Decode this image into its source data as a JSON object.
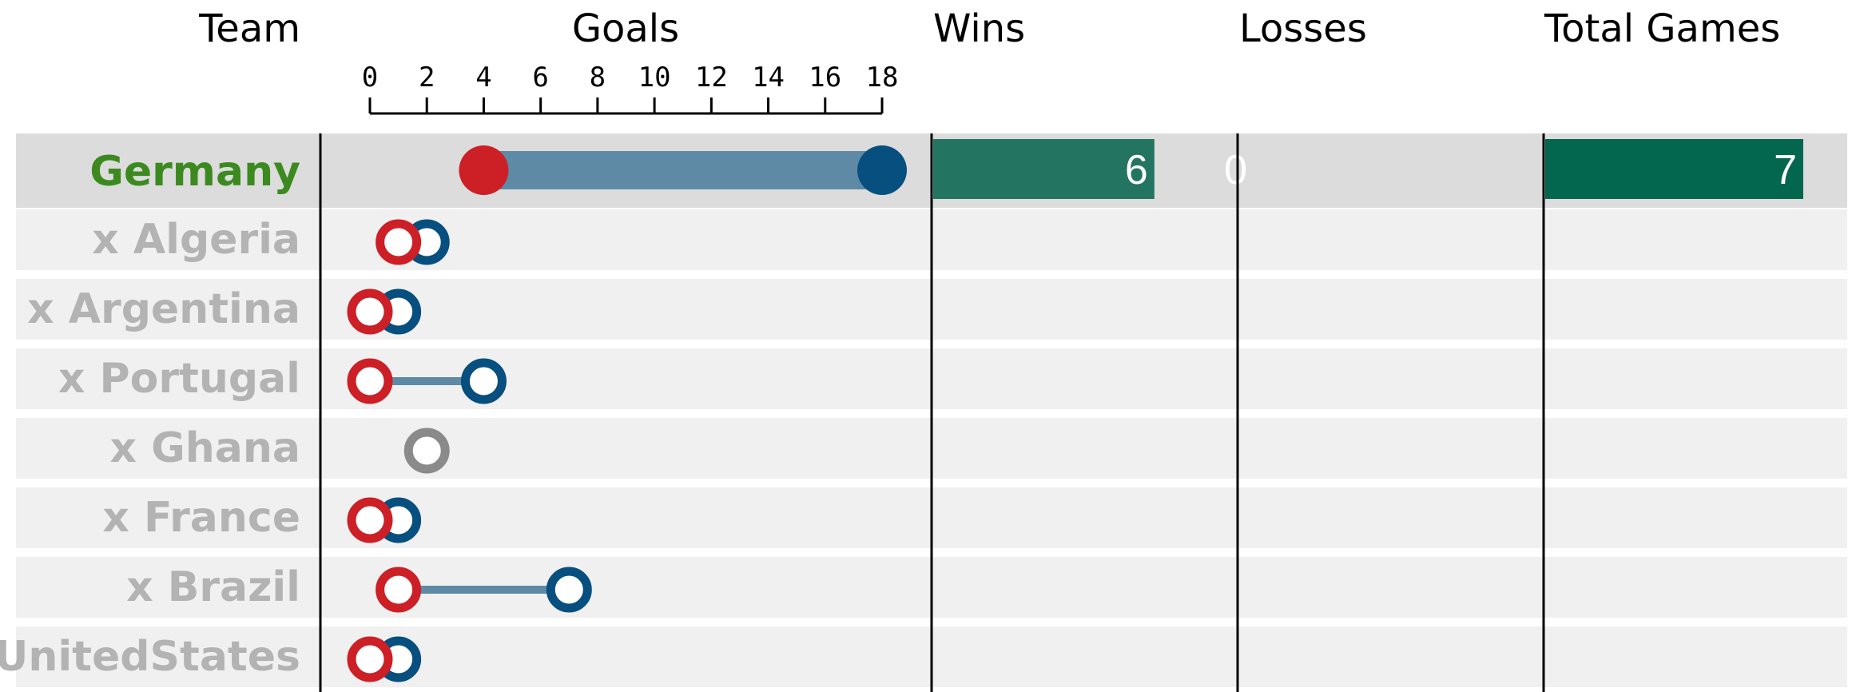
{
  "chart_data": {
    "type": "table",
    "columns": {
      "team": "Team",
      "goals": "Goals",
      "wins": "Wins",
      "losses": "Losses",
      "total_games": "Total Games"
    },
    "goals_axis": {
      "ticks": [
        "0",
        "2",
        "4",
        "6",
        "8",
        "10",
        "12",
        "14",
        "16",
        "18"
      ],
      "range": [
        0,
        18
      ]
    },
    "summary": {
      "team": "Germany",
      "goals_against": 4,
      "goals_for": 18,
      "wins": 6,
      "wins_label": "6",
      "losses": 0,
      "losses_label": "0",
      "total_games": 7,
      "total_games_label": "7",
      "games_max": 7
    },
    "matches": [
      {
        "label": "x Algeria",
        "goals_against": 1,
        "goals_for": 2
      },
      {
        "label": "x Argentina",
        "goals_against": 0,
        "goals_for": 1
      },
      {
        "label": "x Portugal",
        "goals_against": 0,
        "goals_for": 4
      },
      {
        "label": "x Ghana",
        "goals_against": 2,
        "goals_for": 2
      },
      {
        "label": "x France",
        "goals_against": 0,
        "goals_for": 1
      },
      {
        "label": "x Brazil",
        "goals_against": 1,
        "goals_for": 7
      },
      {
        "label": "x UnitedStates",
        "goals_against": 0,
        "goals_for": 1
      }
    ],
    "colors": {
      "goals_for": "#064f7e",
      "goals_against": "#cc1f26",
      "draw": "#8a8a8a",
      "connector": "#5f8aa6",
      "wins_bar": "#237562",
      "total_bar": "#03664f",
      "team_highlight": "#3c8a1f",
      "team_muted": "#b3b3b3",
      "summary_row_bg": "#dcdcdc",
      "match_row_bg": "#f0f0f0"
    }
  }
}
